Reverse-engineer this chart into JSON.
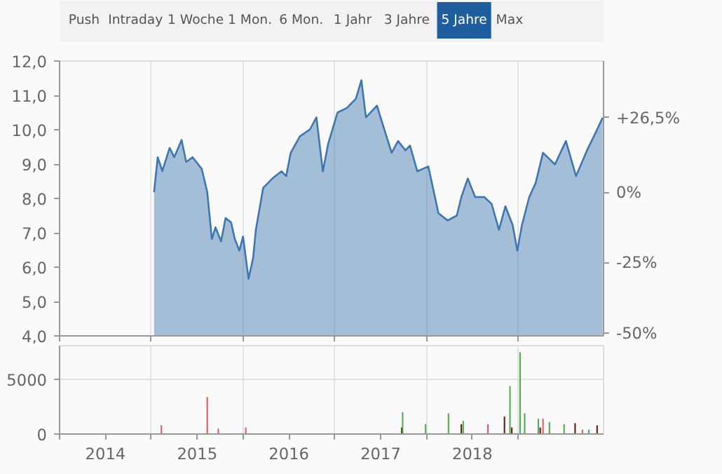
{
  "chart_data": [
    {
      "type": "other",
      "categories": [
        "Push",
        "Intraday",
        "1 Woche",
        "1 Mon.",
        "6 Mon.",
        "1 Jahr",
        "3 Jahre",
        "5 Jahre",
        "Max"
      ],
      "colors": [
        "#f2f2f2",
        "#f2f2f2",
        "#f2f2f2",
        "#f2f2f2",
        "#f2f2f2",
        "#f2f2f2",
        "#f2f2f2",
        "#1f5e9e",
        "#f2f2f2"
      ]
    },
    {
      "type": "area",
      "x": [
        2015.03,
        2015.07,
        2015.12,
        2015.2,
        2015.25,
        2015.33,
        2015.38,
        2015.45,
        2015.55,
        2015.61,
        2015.66,
        2015.7,
        2015.76,
        2015.81,
        2015.87,
        2015.91,
        2015.96,
        2016.0,
        2016.06,
        2016.11,
        2016.14,
        2016.22,
        2016.32,
        2016.42,
        2016.47,
        2016.52,
        2016.62,
        2016.73,
        2016.8,
        2016.87,
        2016.93,
        2017.03,
        2017.13,
        2017.23,
        2017.29,
        2017.34,
        2017.46,
        2017.54,
        2017.62,
        2017.69,
        2017.77,
        2017.82,
        2017.9,
        2018.02,
        2018.13,
        2018.23,
        2018.33,
        2018.38,
        2018.45,
        2018.53,
        2018.63,
        2018.71,
        2018.79,
        2018.86,
        2018.94,
        2018.99,
        2019.04,
        2019.12,
        2019.19,
        2019.27,
        2019.4,
        2019.52,
        2019.63,
        2019.75,
        2019.85,
        2019.92
      ],
      "series": [
        {
          "color": "#3f76b0",
          "values": [
            8.18,
            9.2,
            8.8,
            9.47,
            9.2,
            9.7,
            9.06,
            9.2,
            8.86,
            8.18,
            6.82,
            7.16,
            6.75,
            7.43,
            7.3,
            6.82,
            6.48,
            6.89,
            5.66,
            6.27,
            7.09,
            8.31,
            8.58,
            8.79,
            8.65,
            9.33,
            9.81,
            10.01,
            10.36,
            8.79,
            9.61,
            10.5,
            10.63,
            10.9,
            11.44,
            10.36,
            10.7,
            10.01,
            9.33,
            9.67,
            9.4,
            9.54,
            8.79,
            8.93,
            7.57,
            7.36,
            7.5,
            8.04,
            8.58,
            8.04,
            8.04,
            7.84,
            7.09,
            7.77,
            7.22,
            6.48,
            7.22,
            8.04,
            8.45,
            9.33,
            8.99,
            9.67,
            8.65,
            9.4,
            9.95,
            10.35
          ]
        }
      ],
      "xlim": [
        2014,
        2019.93
      ],
      "xticks": [
        {
          "value": 2014,
          "label": null
        },
        {
          "value": 2015,
          "label": null
        },
        {
          "value": 2016,
          "label": null
        },
        {
          "value": 2017,
          "label": null
        },
        {
          "value": 2018,
          "label": null
        },
        {
          "value": 2019,
          "label": null
        }
      ],
      "ylim": [
        4,
        12
      ],
      "yticks": [
        {
          "value": 4,
          "label": "4,0"
        },
        {
          "value": 5,
          "label": "5,0"
        },
        {
          "value": 6,
          "label": "6,0"
        },
        {
          "value": 7,
          "label": "7,0"
        },
        {
          "value": 8,
          "label": "8,0"
        },
        {
          "value": 9,
          "label": "9,0"
        },
        {
          "value": 10,
          "label": "10,0"
        },
        {
          "value": 11,
          "label": "11,0"
        },
        {
          "value": 12,
          "label": "12,0"
        }
      ],
      "y2lim": [
        -51.1,
        46.7
      ],
      "y2ticks": [
        {
          "value": -50,
          "label": "-50%"
        },
        {
          "value": -25,
          "label": "-25%"
        },
        {
          "value": 0,
          "label": "0%"
        },
        {
          "value": 26.5,
          "label": "+26,5%"
        }
      ],
      "grid": true,
      "tick_labels": "y"
    },
    {
      "type": "bar",
      "x": [
        2015.11,
        2015.61,
        2015.73,
        2016.03,
        2017.73,
        2017.74,
        2017.99,
        2018.24,
        2018.38,
        2018.4,
        2018.67,
        2018.85,
        2018.91,
        2018.93,
        2019.02,
        2019.07,
        2019.22,
        2019.24,
        2019.27,
        2019.34,
        2019.5,
        2019.62,
        2019.7,
        2019.77,
        2019.86
      ],
      "values": [
        800,
        3400,
        500,
        600,
        600,
        2000,
        900,
        1900,
        900,
        1200,
        900,
        1600,
        4400,
        600,
        7500,
        1900,
        1400,
        600,
        1400,
        1100,
        900,
        1000,
        400,
        400,
        800
      ],
      "colors": [
        "#e05a64",
        "#e05a64",
        "#e05a64",
        "#e05a64",
        "#6b1a0a",
        "#4cae4c",
        "#4cae4c",
        "#4cae4c",
        "#6b1a0a",
        "#4cae4c",
        "#e05a64",
        "#6b1a0a",
        "#4cae4c",
        "#6b1a0a",
        "#4cae4c",
        "#4cae4c",
        "#4cae4c",
        "#6b1a0a",
        "#e05a64",
        "#4cae4c",
        "#4cae4c",
        "#6b1a0a",
        "#e05a64",
        "#4cae4c",
        "#6b1a0a"
      ],
      "xlim": [
        2014,
        2019.93
      ],
      "xticks": [
        {
          "value": 2014,
          "label": null
        },
        {
          "value": 2015,
          "label": null
        },
        {
          "value": 2016,
          "label": null
        },
        {
          "value": 2017,
          "label": null
        },
        {
          "value": 2018,
          "label": null
        },
        {
          "value": 2019,
          "label": null
        },
        {
          "value": 2014.5,
          "label": "2014"
        },
        {
          "value": 2015.5,
          "label": "2015"
        },
        {
          "value": 2016.5,
          "label": "2016"
        },
        {
          "value": 2017.5,
          "label": "2017"
        },
        {
          "value": 2018.5,
          "label": "2018"
        }
      ],
      "ylim": [
        0,
        8100
      ],
      "yticks": [
        0,
        5000
      ],
      "grid": true
    }
  ]
}
